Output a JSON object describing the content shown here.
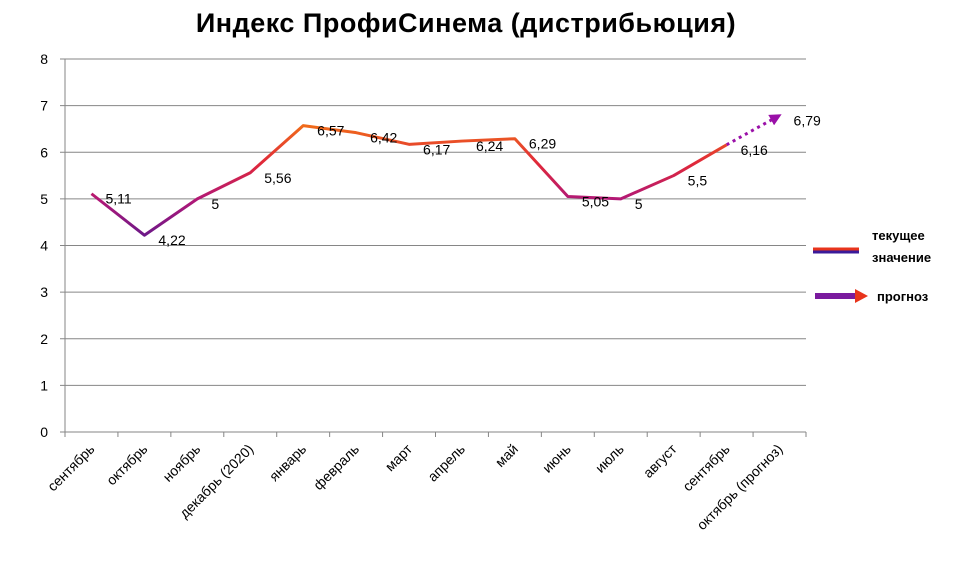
{
  "colors": {
    "grid": "#868686",
    "axis": "#868686",
    "line_low": "#3a1a9a",
    "line_high": "#e8341c",
    "line_mid": "#c8186a",
    "forecast": "#9a10a8",
    "legend_arrow": "#7a1a9e"
  },
  "chart_data": {
    "type": "line",
    "title": "Индекс ПрофиСинема (дистрибьюция)",
    "xlabel": "",
    "ylabel": "",
    "ylim": [
      0,
      8
    ],
    "yticks": [
      "0",
      "1",
      "2",
      "3",
      "4",
      "5",
      "6",
      "7",
      "8"
    ],
    "grid": true,
    "categories": [
      "сентябрь",
      "октябрь",
      "ноябрь",
      "декабрь (2020)",
      "январь",
      "февраль",
      "март",
      "апрель",
      "май",
      "июнь",
      "июль",
      "август",
      "сентябрь",
      "октябрь (прогноз)"
    ],
    "values": [
      5.11,
      4.22,
      5.0,
      5.56,
      6.57,
      6.42,
      6.17,
      6.24,
      6.29,
      5.05,
      5.0,
      5.5,
      6.16,
      6.79
    ],
    "data_labels": [
      "5,11",
      "4,22",
      "5",
      "5,56",
      "6,57",
      "6,42",
      "6,17",
      "6,24",
      "6,29",
      "5,05",
      "5",
      "5,5",
      "6,16",
      "6,79"
    ],
    "forecast_from_index": 12,
    "legend_position": "right",
    "legend": [
      {
        "label_line1": "текущее",
        "label_line2": "значение",
        "style": "gradient-line"
      },
      {
        "label": "прогноз",
        "style": "arrow"
      }
    ]
  }
}
